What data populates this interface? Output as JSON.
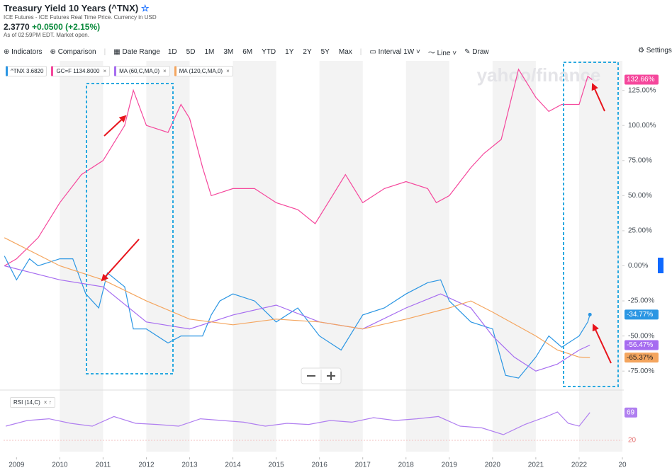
{
  "header": {
    "title": "Treasury Yield 10 Years (^TNX)",
    "subtitle": "ICE Futures - ICE Futures Real Time Price. Currency in USD",
    "price": "2.3770",
    "change": "+0.0500",
    "change_pct": "(+2.15%)",
    "as_of": "As of 02:59PM EDT. Market open."
  },
  "toolbar": {
    "indicators": "Indicators",
    "comparison": "Comparison",
    "date_range": "Date Range",
    "ranges": [
      "1D",
      "5D",
      "1M",
      "3M",
      "6M",
      "YTD",
      "1Y",
      "2Y",
      "5Y",
      "Max"
    ],
    "interval": "Interval",
    "interval_value": "1W",
    "line": "Line",
    "draw": "Draw",
    "settings": "Settings"
  },
  "legend": [
    "^TNX 3.6820",
    "GC=F 1134.8000",
    "MA (60,C,MA,0)",
    "MA (120,C,MA,0)"
  ],
  "watermark": "yahoo/finance",
  "chart_data": [
    {
      "type": "line",
      "xlim": [
        2008.7,
        2023.0
      ],
      "ylim": [
        -87,
        146
      ],
      "xticks": [
        2009,
        2010,
        2011,
        2012,
        2013,
        2014,
        2015,
        2016,
        2017,
        2018,
        2019,
        2020,
        2021,
        2022,
        {
          "value": 2023,
          "label": "20"
        }
      ],
      "yticks": [
        {
          "value": -75,
          "label": "-75.00%"
        },
        {
          "value": -50,
          "label": "-50.00%"
        },
        {
          "value": -25,
          "label": "-25.00%"
        },
        {
          "value": 0,
          "label": "0.00%"
        },
        {
          "value": 25,
          "label": "25.00%"
        },
        {
          "value": 50,
          "label": "50.00%"
        },
        {
          "value": 75,
          "label": "75.00%"
        },
        {
          "value": 100,
          "label": "100.00%"
        },
        {
          "value": 125,
          "label": "125.00%"
        }
      ],
      "grid": false,
      "series": [
        {
          "name": "GC=F",
          "color": "#f5479c",
          "x": [
            2008.72,
            2009.0,
            2009.5,
            2010.0,
            2010.5,
            2011.0,
            2011.5,
            2011.7,
            2012.0,
            2012.5,
            2012.8,
            2013.0,
            2013.3,
            2013.5,
            2014.0,
            2014.5,
            2015.0,
            2015.5,
            2015.9,
            2016.3,
            2016.6,
            2017.0,
            2017.5,
            2018.0,
            2018.5,
            2018.7,
            2019.0,
            2019.5,
            2019.8,
            2020.2,
            2020.6,
            2021.0,
            2021.3,
            2021.6,
            2022.0,
            2022.2,
            2022.3
          ],
          "values": [
            0,
            5,
            20,
            45,
            65,
            75,
            100,
            125,
            100,
            95,
            115,
            105,
            70,
            50,
            55,
            55,
            45,
            40,
            30,
            50,
            65,
            45,
            55,
            60,
            55,
            45,
            50,
            70,
            80,
            90,
            140,
            120,
            110,
            115,
            115,
            135,
            132.66
          ],
          "end_label": "132.66%"
        },
        {
          "name": "^TNX",
          "color": "#2b96e3",
          "x": [
            2008.72,
            2009.0,
            2009.3,
            2009.5,
            2010.0,
            2010.3,
            2010.6,
            2010.9,
            2011.1,
            2011.5,
            2011.7,
            2012.0,
            2012.5,
            2012.8,
            2013.0,
            2013.3,
            2013.5,
            2013.7,
            2014.0,
            2014.5,
            2015.0,
            2015.5,
            2016.0,
            2016.5,
            2017.0,
            2017.5,
            2018.0,
            2018.5,
            2018.8,
            2019.0,
            2019.5,
            2020.0,
            2020.3,
            2020.6,
            2021.0,
            2021.3,
            2021.6,
            2022.0,
            2022.2,
            2022.25
          ],
          "values": [
            7,
            -10,
            5,
            0,
            5,
            5,
            -20,
            -30,
            -5,
            -15,
            -45,
            -45,
            -55,
            -50,
            -50,
            -50,
            -35,
            -25,
            -20,
            -25,
            -40,
            -30,
            -50,
            -60,
            -35,
            -30,
            -20,
            -12,
            -10,
            -25,
            -40,
            -45,
            -78,
            -80,
            -65,
            -50,
            -58,
            -50,
            -40,
            -34.77
          ],
          "end_label": "-34.77%",
          "end_dot": true
        },
        {
          "name": "MA (60,C,MA,0)",
          "color": "#a66cf0",
          "x": [
            2008.72,
            2010.0,
            2011.0,
            2012.0,
            2013.0,
            2014.0,
            2015.0,
            2016.0,
            2017.0,
            2018.0,
            2018.8,
            2019.5,
            2020.0,
            2020.5,
            2021.0,
            2021.5,
            2022.0,
            2022.25
          ],
          "values": [
            0,
            -10,
            -15,
            -40,
            -45,
            -35,
            -28,
            -40,
            -45,
            -30,
            -20,
            -30,
            -50,
            -65,
            -75,
            -70,
            -60,
            -56.47
          ],
          "end_label": "-56.47%"
        },
        {
          "name": "MA (120,C,MA,0)",
          "color": "#f4a55e",
          "x": [
            2008.72,
            2010.0,
            2011.0,
            2012.0,
            2013.0,
            2014.0,
            2015.0,
            2016.0,
            2017.0,
            2018.0,
            2019.0,
            2019.5,
            2020.0,
            2021.0,
            2021.5,
            2022.0,
            2022.25
          ],
          "values": [
            20,
            0,
            -10,
            -25,
            -38,
            -42,
            -38,
            -40,
            -45,
            -38,
            -30,
            -25,
            -33,
            -50,
            -60,
            -65,
            -65.37
          ],
          "end_label": "-65.37%"
        }
      ]
    },
    {
      "type": "line",
      "xlim": [
        2008.7,
        2023.0
      ],
      "ylim": [
        0,
        100
      ],
      "yticks": [
        20
      ],
      "grid": true,
      "series": [
        {
          "name": "RSI (14,C)",
          "color": "#b07ff0",
          "x": [
            2008.75,
            2009.25,
            2009.75,
            2010.25,
            2010.75,
            2011.25,
            2011.75,
            2012.25,
            2012.75,
            2013.25,
            2013.75,
            2014.25,
            2014.75,
            2015.25,
            2015.75,
            2016.25,
            2016.75,
            2017.25,
            2017.75,
            2018.25,
            2018.75,
            2019.25,
            2019.75,
            2020.25,
            2020.75,
            2021.25,
            2021.5,
            2021.75,
            2022.0,
            2022.25
          ],
          "values": [
            45,
            55,
            58,
            50,
            45,
            62,
            50,
            48,
            45,
            58,
            55,
            52,
            45,
            50,
            48,
            55,
            52,
            60,
            55,
            58,
            62,
            45,
            42,
            30,
            48,
            62,
            70,
            50,
            45,
            69
          ],
          "end_label": "69"
        }
      ]
    }
  ]
}
